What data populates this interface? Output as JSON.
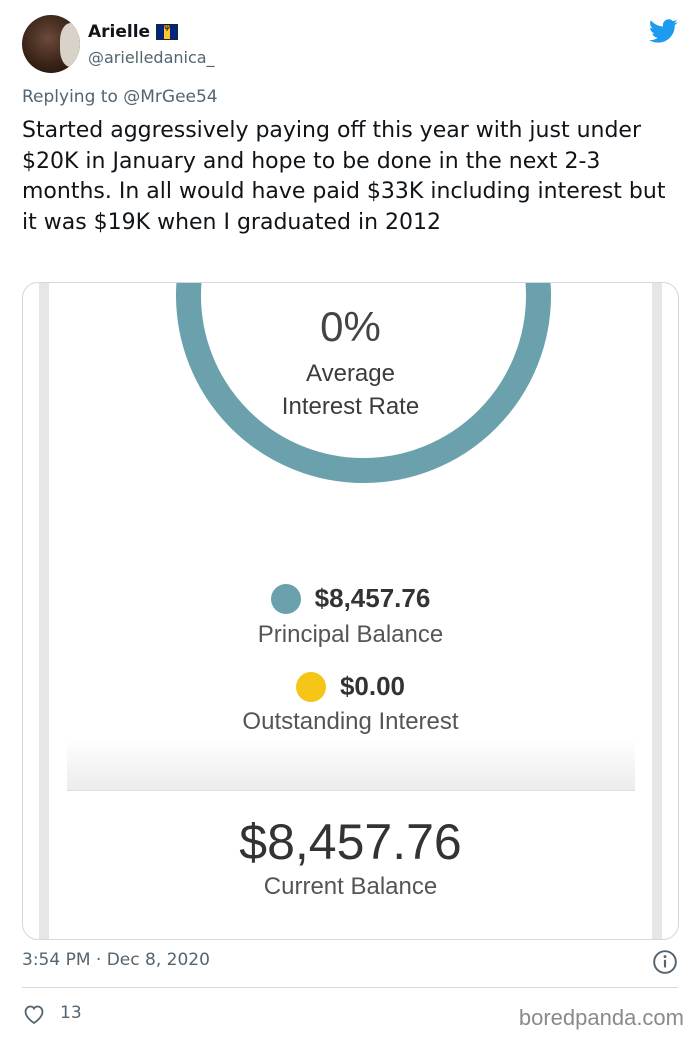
{
  "author": {
    "display_name": "Arielle",
    "handle": "@arielledanica_"
  },
  "tweet": {
    "reply_to": "Replying to @MrGee54",
    "text": "Started aggressively paying off this year with just under $20K in January and hope to be done in the next 2-3 months. In all would have paid $33K including interest but it was $19K when I graduated in 2012",
    "timestamp": "3:54 PM · Dec 8, 2020",
    "likes": "13"
  },
  "media": {
    "interest_rate_value": "0%",
    "interest_rate_label_line1": "Average",
    "interest_rate_label_line2": "Interest Rate",
    "principal": {
      "amount": "$8,457.76",
      "label": "Principal Balance",
      "color": "#6aa1ac"
    },
    "outstanding_interest": {
      "amount": "$0.00",
      "label": "Outstanding Interest",
      "color": "#f5c518"
    },
    "current_balance": {
      "amount": "$8,457.76",
      "label": "Current Balance"
    },
    "ring_color": "#6aa1ac"
  },
  "watermark": "boredpanda.com",
  "icons": {
    "brand": "twitter-bird-icon",
    "info": "info-icon",
    "like": "heart-icon",
    "flag": "barbados-flag-icon"
  },
  "colors": {
    "twitter_blue": "#1d9bf0",
    "secondary_text": "#536471"
  }
}
